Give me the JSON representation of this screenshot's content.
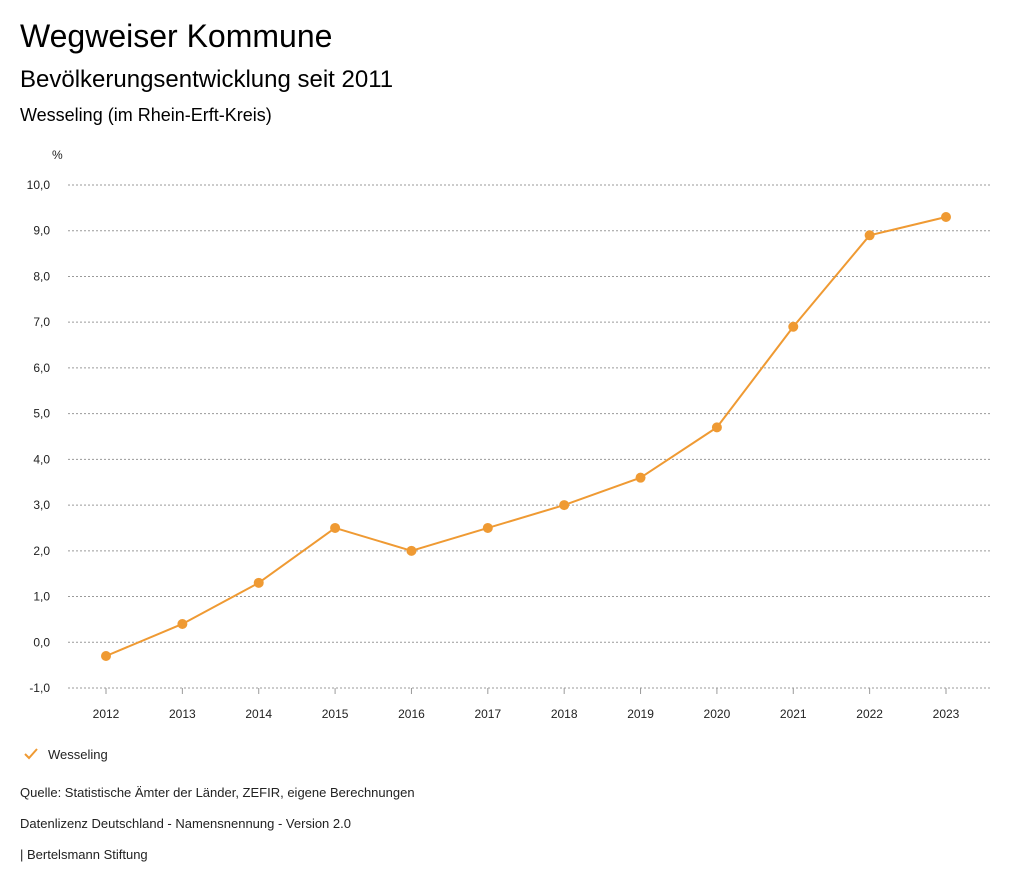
{
  "header": {
    "title": "Wegweiser Kommune",
    "subtitle": "Bevölkerungsentwicklung seit 2011",
    "region": "Wesseling (im Rhein-Erft-Kreis)"
  },
  "chart_data": {
    "type": "line",
    "unit_label": "%",
    "categories": [
      "2012",
      "2013",
      "2014",
      "2015",
      "2016",
      "2017",
      "2018",
      "2019",
      "2020",
      "2021",
      "2022",
      "2023"
    ],
    "series": [
      {
        "name": "Wesseling",
        "color": "#ef9a33",
        "values": [
          -0.3,
          0.4,
          1.3,
          2.5,
          2.0,
          2.5,
          3.0,
          3.6,
          4.7,
          6.9,
          8.9,
          9.3
        ]
      }
    ],
    "ylim": [
      -1.0,
      10.0
    ],
    "yticks": [
      "-1,0",
      "0,0",
      "1,0",
      "2,0",
      "3,0",
      "4,0",
      "5,0",
      "6,0",
      "7,0",
      "8,0",
      "9,0",
      "10,0"
    ],
    "grid": true,
    "legend_position": "bottom-left"
  },
  "legend": {
    "label": "Wesseling",
    "icon": "check-icon"
  },
  "footer": {
    "source": "Quelle: Statistische Ämter der Länder, ZEFIR, eigene Berechnungen",
    "license": "Datenlizenz Deutschland - Namensnennung - Version 2.0",
    "publisher": "| Bertelsmann Stiftung"
  }
}
